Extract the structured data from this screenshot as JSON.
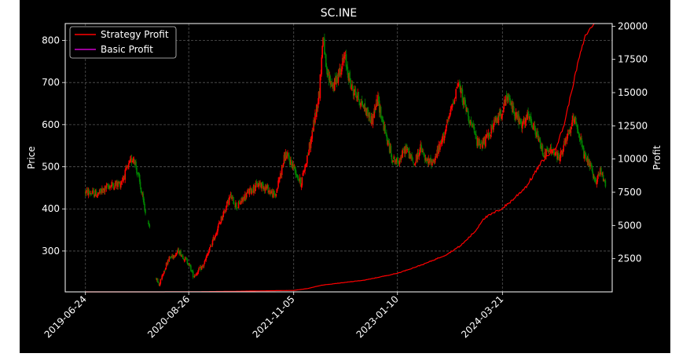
{
  "chart_data": {
    "type": "line",
    "title": "SC.INE",
    "ylabel_left": "Price",
    "ylabel_right": "Profit",
    "xlabel": "",
    "x_ticks": [
      "2019-06-24",
      "2020-08-26",
      "2021-11-05",
      "2023-01-10",
      "2024-03-21"
    ],
    "y_left_ticks": [
      300,
      400,
      500,
      600,
      700,
      800
    ],
    "y_left_range": [
      203,
      840
    ],
    "y_right_ticks": [
      2500,
      5000,
      7500,
      10000,
      12500,
      15000,
      17500,
      20000
    ],
    "y_right_range": [
      0,
      20200
    ],
    "x_range": [
      "2019-04-01",
      "2025-06-20"
    ],
    "grid": true,
    "legend_position": "upper-left",
    "series": [
      {
        "name": "Strategy Profit",
        "axis": "right",
        "color": "#ff0000",
        "points": [
          [
            "2019-06-24",
            0
          ],
          [
            "2020-01-01",
            0
          ],
          [
            "2020-08-26",
            5
          ],
          [
            "2021-03-01",
            40
          ],
          [
            "2021-06-01",
            70
          ],
          [
            "2021-11-05",
            110
          ],
          [
            "2022-01-01",
            250
          ],
          [
            "2022-03-01",
            500
          ],
          [
            "2022-06-01",
            700
          ],
          [
            "2022-09-01",
            900
          ],
          [
            "2023-01-10",
            1400
          ],
          [
            "2023-05-01",
            2100
          ],
          [
            "2023-08-01",
            2800
          ],
          [
            "2023-10-01",
            3500
          ],
          [
            "2023-12-01",
            4600
          ],
          [
            "2024-01-01",
            5500
          ],
          [
            "2024-03-21",
            6300
          ],
          [
            "2024-05-01",
            6900
          ],
          [
            "2024-07-01",
            8000
          ],
          [
            "2024-09-01",
            9800
          ],
          [
            "2024-11-01",
            11000
          ],
          [
            "2024-12-01",
            12500
          ],
          [
            "2025-01-01",
            15000
          ],
          [
            "2025-02-01",
            17500
          ],
          [
            "2025-03-01",
            19300
          ],
          [
            "2025-04-05",
            20200
          ]
        ]
      },
      {
        "name": "Basic Profit",
        "axis": "right",
        "color": "#cc00cc",
        "points": []
      },
      {
        "name": "",
        "axis": "left",
        "type": "candlestick",
        "color_up": "#ff0000",
        "color_down": "#008000",
        "anchors": [
          [
            "2019-06-24",
            440
          ],
          [
            "2019-08-15",
            435
          ],
          [
            "2019-10-01",
            455
          ],
          [
            "2019-11-15",
            460
          ],
          [
            "2020-01-10",
            525
          ],
          [
            "2020-02-01",
            470
          ],
          [
            "2020-02-28",
            390
          ],
          [
            "2020-03-15",
            365
          ],
          [
            "2020-04-01",
            250
          ],
          [
            "2020-04-25",
            220
          ],
          [
            "2020-06-01",
            280
          ],
          [
            "2020-07-15",
            300
          ],
          [
            "2020-08-26",
            270
          ],
          [
            "2020-09-15",
            240
          ],
          [
            "2020-10-25",
            265
          ],
          [
            "2020-11-25",
            310
          ],
          [
            "2021-01-10",
            380
          ],
          [
            "2021-02-15",
            430
          ],
          [
            "2021-03-15",
            405
          ],
          [
            "2021-05-01",
            440
          ],
          [
            "2021-06-15",
            460
          ],
          [
            "2021-07-15",
            450
          ],
          [
            "2021-08-20",
            430
          ],
          [
            "2021-10-01",
            530
          ],
          [
            "2021-11-05",
            500
          ],
          [
            "2021-12-05",
            460
          ],
          [
            "2022-01-15",
            560
          ],
          [
            "2022-02-20",
            680
          ],
          [
            "2022-03-08",
            820
          ],
          [
            "2022-03-20",
            720
          ],
          [
            "2022-04-20",
            690
          ],
          [
            "2022-06-05",
            760
          ],
          [
            "2022-07-01",
            690
          ],
          [
            "2022-08-15",
            650
          ],
          [
            "2022-09-25",
            610
          ],
          [
            "2022-10-20",
            660
          ],
          [
            "2022-11-20",
            580
          ],
          [
            "2022-12-20",
            520
          ],
          [
            "2023-01-10",
            510
          ],
          [
            "2023-02-15",
            545
          ],
          [
            "2023-03-20",
            505
          ],
          [
            "2023-04-15",
            545
          ],
          [
            "2023-05-10",
            510
          ],
          [
            "2023-06-10",
            515
          ],
          [
            "2023-07-10",
            555
          ],
          [
            "2023-08-10",
            610
          ],
          [
            "2023-09-18",
            700
          ],
          [
            "2023-10-15",
            650
          ],
          [
            "2023-11-10",
            605
          ],
          [
            "2023-12-10",
            555
          ],
          [
            "2024-01-10",
            560
          ],
          [
            "2024-02-10",
            595
          ],
          [
            "2024-03-21",
            635
          ],
          [
            "2024-04-10",
            665
          ],
          [
            "2024-05-10",
            630
          ],
          [
            "2024-06-10",
            595
          ],
          [
            "2024-07-05",
            620
          ],
          [
            "2024-08-10",
            575
          ],
          [
            "2024-09-10",
            530
          ],
          [
            "2024-10-10",
            540
          ],
          [
            "2024-11-10",
            520
          ],
          [
            "2024-12-10",
            560
          ],
          [
            "2025-01-15",
            620
          ],
          [
            "2025-02-10",
            560
          ],
          [
            "2025-02-25",
            520
          ],
          [
            "2025-03-20",
            505
          ],
          [
            "2025-04-08",
            460
          ],
          [
            "2025-05-01",
            490
          ],
          [
            "2025-05-25",
            460
          ]
        ],
        "gaps": [
          [
            "2020-03-01",
            "2020-03-10"
          ],
          [
            "2020-03-20",
            "2020-04-10"
          ]
        ]
      }
    ]
  }
}
